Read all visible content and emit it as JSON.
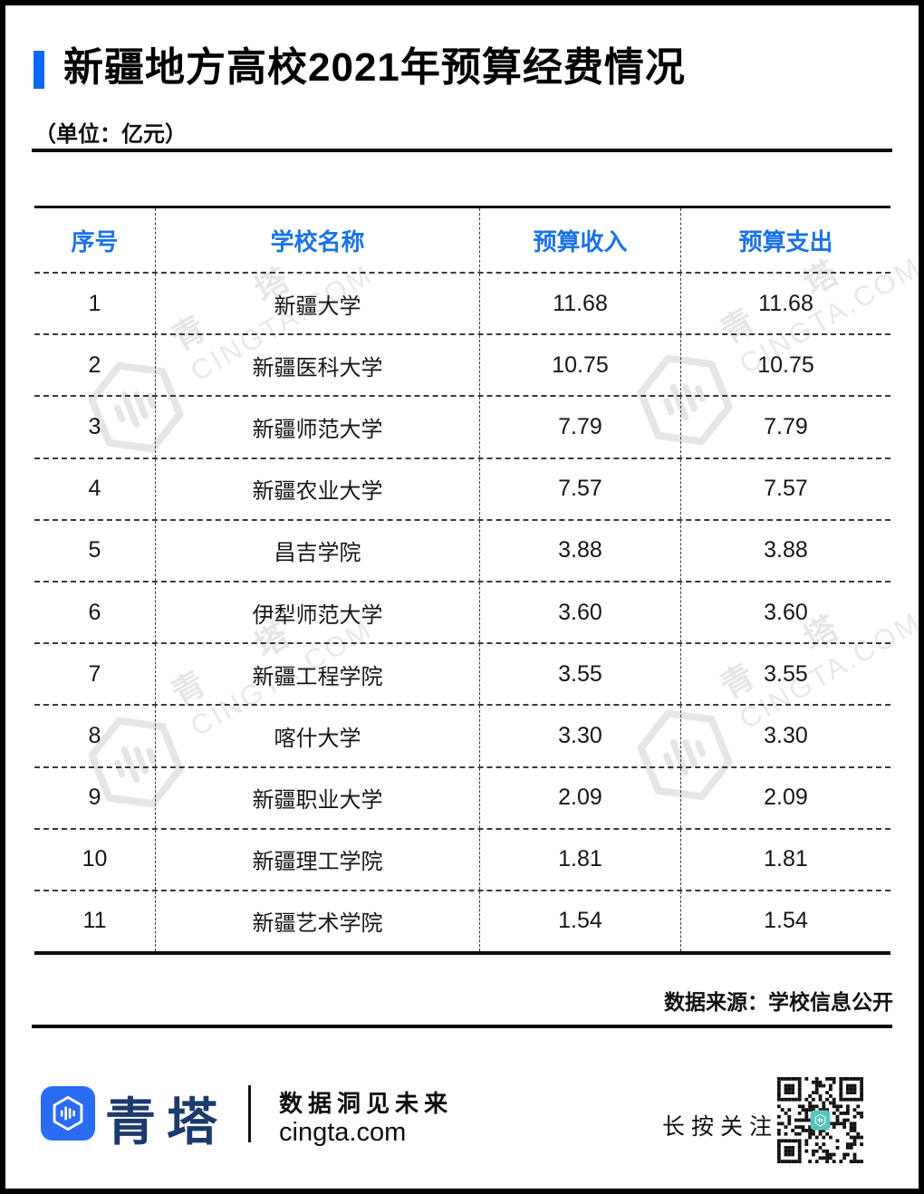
{
  "header": {
    "title": "新疆地方高校2021年预算经费情况",
    "unit_note": "（单位：亿元）",
    "accent_color": "#0a6af6"
  },
  "table": {
    "columns": [
      "序号",
      "学校名称",
      "预算收入",
      "预算支出"
    ],
    "header_color": "#1a73e8",
    "rows": [
      [
        "1",
        "新疆大学",
        "11.68",
        "11.68"
      ],
      [
        "2",
        "新疆医科大学",
        "10.75",
        "10.75"
      ],
      [
        "3",
        "新疆师范大学",
        "7.79",
        "7.79"
      ],
      [
        "4",
        "新疆农业大学",
        "7.57",
        "7.57"
      ],
      [
        "5",
        "昌吉学院",
        "3.88",
        "3.88"
      ],
      [
        "6",
        "伊犁师范大学",
        "3.60",
        "3.60"
      ],
      [
        "7",
        "新疆工程学院",
        "3.55",
        "3.55"
      ],
      [
        "8",
        "喀什大学",
        "3.30",
        "3.30"
      ],
      [
        "9",
        "新疆职业大学",
        "2.09",
        "2.09"
      ],
      [
        "10",
        "新疆理工学院",
        "1.81",
        "1.81"
      ],
      [
        "11",
        "新疆艺术学院",
        "1.54",
        "1.54"
      ]
    ]
  },
  "source_note": "数据来源：学校信息公开",
  "watermark": {
    "brand": "青 塔",
    "domain": "CINGTA.COM"
  },
  "footer": {
    "brand": "青塔",
    "slogan": "数据洞见未来",
    "site": "cingta.com",
    "follow_label": "长按关注",
    "logo_color": "#2a6cf4",
    "brand_color": "#1d3a6e",
    "qr_center_color": "#57c5bf"
  },
  "chart_data": {
    "type": "table",
    "title": "新疆地方高校2021年预算经费情况",
    "unit": "亿元",
    "columns": [
      "序号",
      "学校名称",
      "预算收入",
      "预算支出"
    ],
    "rows": [
      [
        1,
        "新疆大学",
        11.68,
        11.68
      ],
      [
        2,
        "新疆医科大学",
        10.75,
        10.75
      ],
      [
        3,
        "新疆师范大学",
        7.79,
        7.79
      ],
      [
        4,
        "新疆农业大学",
        7.57,
        7.57
      ],
      [
        5,
        "昌吉学院",
        3.88,
        3.88
      ],
      [
        6,
        "伊犁师范大学",
        3.6,
        3.6
      ],
      [
        7,
        "新疆工程学院",
        3.55,
        3.55
      ],
      [
        8,
        "喀什大学",
        3.3,
        3.3
      ],
      [
        9,
        "新疆职业大学",
        2.09,
        2.09
      ],
      [
        10,
        "新疆理工学院",
        1.81,
        1.81
      ],
      [
        11,
        "新疆艺术学院",
        1.54,
        1.54
      ]
    ],
    "source": "学校信息公开"
  }
}
